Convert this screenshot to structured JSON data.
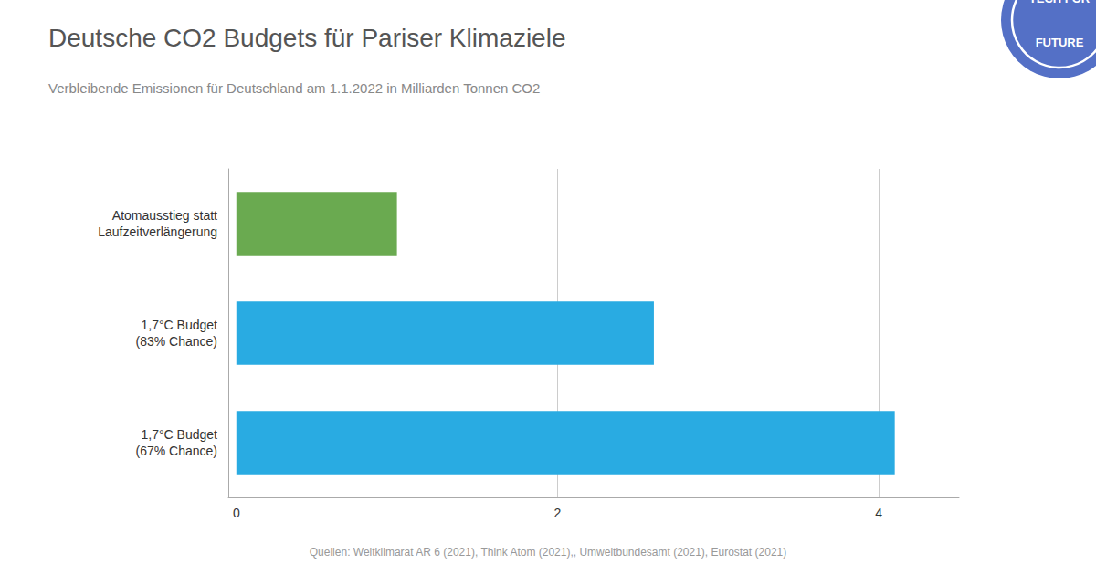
{
  "chart_data": {
    "type": "bar",
    "orientation": "horizontal",
    "title": "Deutsche CO2 Budgets für Pariser Klimaziele",
    "subtitle": "Verbleibende Emissionen für Deutschland am 1.1.2022 in Milliarden Tonnen CO2",
    "footnote": "Quellen: Weltklimarat AR 6 (2021), Think Atom (2021),, Umweltbundesamt (2021), Eurostat (2021)",
    "annotations": [
      "TECH FOR",
      "FUTURE"
    ],
    "categories": [
      "Atomausstieg statt\nLaufzeitverlängerung",
      "1,7°C Budget\n(83% Chance)",
      "1,7°C Budget\n(67% Chance)"
    ],
    "values": [
      1.0,
      2.6,
      4.1
    ],
    "colors": [
      "#6aaa50",
      "#29abe2",
      "#29abe2"
    ],
    "xlim": [
      -0.05,
      4.5
    ],
    "xticks": [
      0,
      2,
      4
    ],
    "grid": true,
    "legend": false,
    "data_labels": false
  }
}
